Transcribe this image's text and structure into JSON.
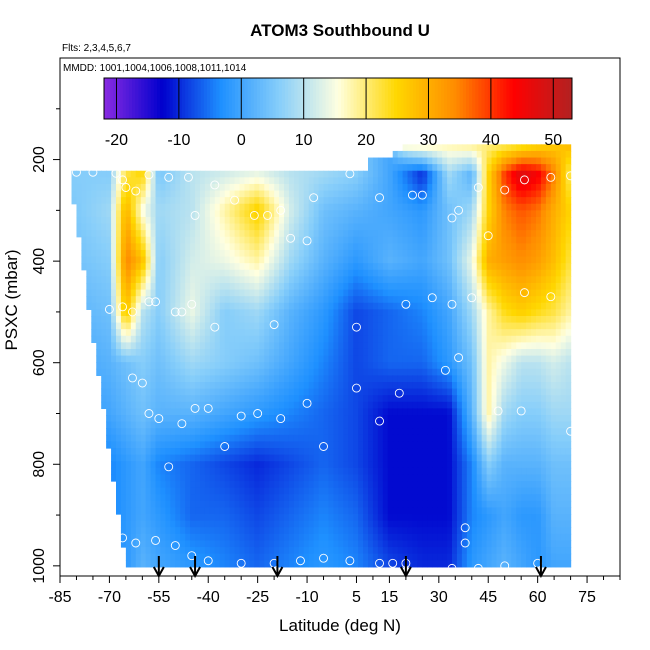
{
  "chart_data": {
    "type": "heatmap",
    "title": "ATOM3 Southbound U",
    "subtitle_flights": "Flts: 2,3,4,5,6,7",
    "subtitle_dates": "MMDD: 1001,1004,1006,1008,1011,1014",
    "xlabel": "Latitude (deg N)",
    "ylabel": "PSXC (mbar)",
    "xlim": [
      -85,
      85
    ],
    "ylim": [
      1020,
      0
    ],
    "x_ticks": [
      "-85",
      "-70",
      "-55",
      "-40",
      "-25",
      "-10",
      "5",
      "15",
      "30",
      "45",
      "60",
      "75"
    ],
    "x_tick_values": [
      -85,
      -70,
      -55,
      -40,
      -25,
      -10,
      5,
      15,
      30,
      45,
      60,
      75
    ],
    "y_ticks": [
      "200",
      "400",
      "600",
      "800",
      "1000"
    ],
    "y_tick_values": [
      200,
      400,
      600,
      800,
      1000
    ],
    "colorbar": {
      "range": [
        -22,
        53
      ],
      "ticks": [
        "-20",
        "-10",
        "0",
        "10",
        "20",
        "30",
        "40",
        "50"
      ],
      "tick_values": [
        -20,
        -10,
        0,
        10,
        20,
        30,
        40,
        50
      ],
      "colors": [
        "#8a2be2",
        "#0000cd",
        "#1e90ff",
        "#87cefa",
        "#ffffe0",
        "#ffd700",
        "#ff8c00",
        "#ff0000",
        "#b22222"
      ]
    },
    "profile_arrows_lat": [
      -55,
      -44,
      -19,
      20,
      61
    ],
    "field_nodes": {
      "lat": [
        -82,
        -70,
        -65,
        -60,
        -55,
        -45,
        -35,
        -25,
        -15,
        -5,
        5,
        15,
        25,
        33,
        40,
        45,
        50,
        55,
        60,
        65,
        70
      ],
      "p": [
        175,
        230,
        300,
        400,
        500,
        600,
        700,
        800,
        900,
        1000
      ],
      "u": [
        [
          null,
          null,
          null,
          null,
          null,
          null,
          null,
          null,
          null,
          null,
          null,
          null,
          16,
          17,
          18,
          20,
          22,
          24,
          26,
          27,
          28
        ],
        [
          6,
          6,
          22,
          25,
          5,
          10,
          12,
          14,
          10,
          8,
          6,
          0,
          -10,
          8,
          2,
          25,
          40,
          48,
          45,
          35,
          20
        ],
        [
          5,
          8,
          30,
          15,
          8,
          10,
          18,
          26,
          12,
          4,
          2,
          0,
          -2,
          4,
          8,
          25,
          35,
          38,
          36,
          30,
          25
        ],
        [
          4,
          6,
          35,
          28,
          6,
          12,
          14,
          18,
          8,
          2,
          -2,
          2,
          0,
          4,
          14,
          30,
          32,
          34,
          32,
          28,
          22
        ],
        [
          2,
          4,
          28,
          10,
          6,
          14,
          6,
          8,
          2,
          -2,
          -8,
          -6,
          -4,
          0,
          8,
          18,
          24,
          26,
          24,
          22,
          18
        ],
        [
          0,
          2,
          4,
          6,
          4,
          8,
          6,
          4,
          0,
          -4,
          -8,
          -6,
          -6,
          -2,
          4,
          18,
          14,
          10,
          10,
          12,
          10
        ],
        [
          -2,
          0,
          2,
          4,
          2,
          2,
          0,
          -2,
          -4,
          -6,
          -8,
          -12,
          -12,
          -12,
          2,
          18,
          8,
          6,
          6,
          8,
          8
        ],
        [
          null,
          -4,
          -2,
          0,
          -4,
          -6,
          -8,
          -10,
          -8,
          -6,
          -8,
          -12,
          -12,
          -12,
          -4,
          6,
          2,
          2,
          2,
          4,
          4
        ],
        [
          null,
          -4,
          -2,
          0,
          -2,
          -6,
          -6,
          -8,
          -6,
          -4,
          -6,
          -12,
          -12,
          -12,
          -4,
          -2,
          0,
          -2,
          -2,
          2,
          2
        ],
        [
          null,
          -2,
          -2,
          2,
          0,
          -2,
          -4,
          -6,
          -4,
          -2,
          -4,
          -8,
          -10,
          -10,
          -2,
          0,
          2,
          0,
          -2,
          0,
          0
        ]
      ]
    },
    "observations": [
      [
        -80,
        225
      ],
      [
        -75,
        225
      ],
      [
        -68,
        227
      ],
      [
        -66,
        240
      ],
      [
        -65,
        255
      ],
      [
        -62,
        262
      ],
      [
        -58,
        230
      ],
      [
        -52,
        235
      ],
      [
        -46,
        235
      ],
      [
        -38,
        250
      ],
      [
        -32,
        280
      ],
      [
        -44,
        310
      ],
      [
        -26,
        310
      ],
      [
        -22,
        310
      ],
      [
        -18,
        300
      ],
      [
        -15,
        355
      ],
      [
        -10,
        360
      ],
      [
        -8,
        275
      ],
      [
        3,
        228
      ],
      [
        12,
        275
      ],
      [
        22,
        270
      ],
      [
        25,
        270
      ],
      [
        34,
        315
      ],
      [
        36,
        300
      ],
      [
        42,
        255
      ],
      [
        50,
        260
      ],
      [
        56,
        240
      ],
      [
        64,
        235
      ],
      [
        70,
        232
      ],
      [
        -70,
        495
      ],
      [
        -66,
        490
      ],
      [
        -63,
        500
      ],
      [
        -58,
        480
      ],
      [
        -56,
        480
      ],
      [
        -50,
        500
      ],
      [
        -48,
        500
      ],
      [
        -45,
        485
      ],
      [
        -38,
        530
      ],
      [
        -20,
        525
      ],
      [
        5,
        530
      ],
      [
        20,
        485
      ],
      [
        28,
        472
      ],
      [
        34,
        485
      ],
      [
        40,
        472
      ],
      [
        56,
        462
      ],
      [
        64,
        470
      ],
      [
        -63,
        630
      ],
      [
        -60,
        640
      ],
      [
        -58,
        700
      ],
      [
        -55,
        710
      ],
      [
        -48,
        720
      ],
      [
        -44,
        690
      ],
      [
        -40,
        690
      ],
      [
        -30,
        705
      ],
      [
        -25,
        700
      ],
      [
        -18,
        710
      ],
      [
        -10,
        680
      ],
      [
        5,
        650
      ],
      [
        12,
        715
      ],
      [
        18,
        660
      ],
      [
        32,
        615
      ],
      [
        36,
        590
      ],
      [
        48,
        695
      ],
      [
        55,
        695
      ],
      [
        70,
        735
      ],
      [
        -35,
        765
      ],
      [
        -5,
        765
      ],
      [
        -52,
        805
      ],
      [
        -66,
        945
      ],
      [
        -62,
        955
      ],
      [
        -56,
        950
      ],
      [
        -50,
        960
      ],
      [
        -45,
        980
      ],
      [
        -40,
        990
      ],
      [
        -30,
        995
      ],
      [
        -20,
        995
      ],
      [
        -12,
        990
      ],
      [
        -5,
        985
      ],
      [
        3,
        990
      ],
      [
        12,
        995
      ],
      [
        16,
        995
      ],
      [
        20,
        995
      ],
      [
        38,
        955
      ],
      [
        38,
        925
      ],
      [
        34,
        1005
      ],
      [
        42,
        1005
      ],
      [
        50,
        1000
      ],
      [
        60,
        995
      ],
      [
        72,
        1005
      ],
      [
        45,
        350
      ]
    ]
  }
}
